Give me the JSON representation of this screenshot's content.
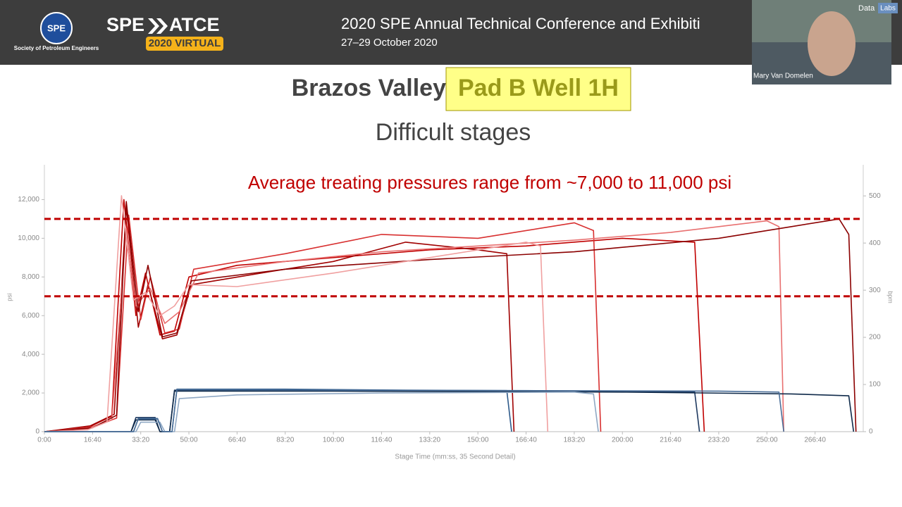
{
  "header": {
    "logo_circle": "SPE",
    "society": "Society of Petroleum Engineers",
    "brand_left": "SPE",
    "brand_right": "ATCE",
    "virtual": "2020 VIRTUAL",
    "title": "2020 SPE Annual Technical Conference and Exhibiti",
    "date": "27–29 October 2020"
  },
  "video": {
    "name": "Mary Van Domelen",
    "brand": "Data",
    "brand_box": "Labs"
  },
  "slide": {
    "title": "Brazos Valley",
    "title_highlight": "Pad B Well 1H",
    "subtitle": "Difficult stages"
  },
  "chart_data": {
    "type": "line",
    "annotation": "Average treating pressures range from ~7,000 to 11,000 psi",
    "x_label": "Stage Time (mm:ss, 35 Second Detail)",
    "y_label": "psi",
    "y2_label": "bpm",
    "xlim": [
      0,
      17000
    ],
    "ylim": [
      0,
      13800
    ],
    "y2lim": [
      0,
      566
    ],
    "xticks": [
      {
        "value": 0,
        "label": "0:00"
      },
      {
        "value": 1000,
        "label": "16:40"
      },
      {
        "value": 2000,
        "label": "33:20"
      },
      {
        "value": 3000,
        "label": "50:00"
      },
      {
        "value": 4000,
        "label": "66:40"
      },
      {
        "value": 5000,
        "label": "83:20"
      },
      {
        "value": 6000,
        "label": "100:00"
      },
      {
        "value": 7000,
        "label": "116:40"
      },
      {
        "value": 8000,
        "label": "133:20"
      },
      {
        "value": 9000,
        "label": "150:00"
      },
      {
        "value": 10000,
        "label": "166:40"
      },
      {
        "value": 11000,
        "label": "183:20"
      },
      {
        "value": 12000,
        "label": "200:00"
      },
      {
        "value": 13000,
        "label": "216:40"
      },
      {
        "value": 14000,
        "label": "233:20"
      },
      {
        "value": 15000,
        "label": "250:00"
      },
      {
        "value": 16000,
        "label": "266:40"
      }
    ],
    "yticks": [
      0,
      {
        "value": 2000,
        "label": "2,000"
      },
      {
        "value": 4000,
        "label": "4,000"
      },
      {
        "value": 6000,
        "label": "6,000"
      },
      {
        "value": 8000,
        "label": "8,000"
      },
      {
        "value": 10000,
        "label": "10,000"
      },
      {
        "value": 12000,
        "label": "12,000"
      }
    ],
    "y2ticks": [
      0,
      100,
      200,
      300,
      400,
      500
    ],
    "reference_lines": {
      "values": [
        11000,
        7000
      ],
      "color": "#c00000",
      "dashed": true
    },
    "series": [
      {
        "color": "#c00000",
        "x": [
          0,
          900,
          1400,
          1650,
          1900,
          2100,
          2400,
          2700,
          3000,
          4000,
          6000,
          8000,
          10000,
          12000,
          13500,
          13700
        ],
        "values": [
          0,
          200,
          800,
          12000,
          6000,
          8200,
          5000,
          5200,
          8000,
          8600,
          9000,
          9400,
          9600,
          10000,
          9800,
          0
        ]
      },
      {
        "color": "#a00000",
        "x": [
          0,
          950,
          1450,
          1700,
          1950,
          2150,
          2450,
          2750,
          3050,
          4500,
          6000,
          7500,
          9000,
          9600,
          9750
        ],
        "values": [
          0,
          300,
          900,
          11600,
          5400,
          7600,
          4800,
          5000,
          7600,
          8200,
          8800,
          9800,
          9400,
          9200,
          0
        ]
      },
      {
        "color": "#d83030",
        "x": [
          0,
          1000,
          1500,
          1750,
          2000,
          2200,
          2500,
          2800,
          3100,
          5000,
          7000,
          9000,
          11000,
          11400,
          11550
        ],
        "values": [
          0,
          250,
          700,
          11200,
          5800,
          8000,
          5100,
          5300,
          8400,
          9200,
          10200,
          10000,
          10800,
          10400,
          0
        ]
      },
      {
        "color": "#e87070",
        "x": [
          0,
          900,
          1400,
          1700,
          1900,
          2200,
          2500,
          2800,
          3200,
          5000,
          7000,
          9000,
          11000,
          13000,
          15000,
          15250,
          15350
        ],
        "values": [
          0,
          150,
          600,
          10500,
          6500,
          7400,
          5600,
          6200,
          8200,
          8800,
          9300,
          9600,
          9900,
          10300,
          10900,
          10600,
          0
        ]
      },
      {
        "color": "#8b0000",
        "x": [
          0,
          1000,
          1500,
          1700,
          1950,
          2150,
          2450,
          2750,
          3050,
          5000,
          8000,
          11000,
          14000,
          15500,
          16500,
          16700,
          16850
        ],
        "values": [
          0,
          200,
          850,
          11900,
          6200,
          8600,
          4900,
          5100,
          7800,
          8400,
          8900,
          9300,
          10000,
          10600,
          11000,
          10200,
          0
        ]
      },
      {
        "color": "#f0a0a0",
        "x": [
          0,
          900,
          1300,
          1600,
          1850,
          2100,
          2400,
          2700,
          3000,
          4000,
          6000,
          8000,
          10000,
          10300,
          10450
        ],
        "values": [
          0,
          100,
          500,
          12200,
          6800,
          7200,
          6000,
          6500,
          7600,
          7500,
          8200,
          9000,
          9800,
          9600,
          0
        ]
      },
      {
        "color": "#1f3a60",
        "axis": "y2",
        "x": [
          0,
          1800,
          1900,
          2300,
          2400,
          2600,
          2700,
          5000,
          8000,
          11000,
          13500,
          13600
        ],
        "values": [
          0,
          0,
          30,
          30,
          0,
          0,
          88,
          88,
          86,
          85,
          84,
          0
        ]
      },
      {
        "color": "#2e5a8a",
        "axis": "y2",
        "x": [
          0,
          1850,
          1950,
          2350,
          2450,
          2650,
          2750,
          5000,
          7500,
          9600,
          9700
        ],
        "values": [
          0,
          0,
          28,
          28,
          0,
          0,
          90,
          90,
          88,
          87,
          0
        ]
      },
      {
        "color": "#0f2a4a",
        "axis": "y2",
        "x": [
          0,
          1800,
          1900,
          2300,
          2400,
          2600,
          2700,
          6000,
          9000,
          12000,
          15500,
          16700,
          16800
        ],
        "values": [
          0,
          0,
          25,
          25,
          0,
          0,
          86,
          86,
          85,
          84,
          80,
          76,
          0
        ]
      },
      {
        "color": "#8fa8c4",
        "axis": "y2",
        "x": [
          0,
          1900,
          2000,
          2400,
          2500,
          2700,
          2800,
          4000,
          7000,
          11000,
          11400,
          11500
        ],
        "values": [
          0,
          0,
          20,
          20,
          0,
          0,
          70,
          78,
          82,
          84,
          80,
          0
        ]
      },
      {
        "color": "#4b6f99",
        "axis": "y2",
        "x": [
          0,
          1850,
          1950,
          2350,
          2450,
          2650,
          2750,
          6000,
          10000,
          14000,
          15250,
          15350
        ],
        "values": [
          0,
          0,
          27,
          27,
          0,
          0,
          89,
          88,
          87,
          86,
          84,
          0
        ]
      }
    ]
  }
}
